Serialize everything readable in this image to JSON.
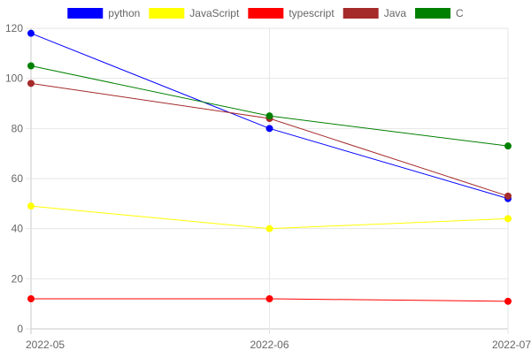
{
  "chart_data": {
    "type": "line",
    "title": "",
    "xlabel": "",
    "ylabel": "",
    "categories": [
      "2022-05",
      "2022-06",
      "2022-07"
    ],
    "ylim": [
      0,
      120
    ],
    "yticks": [
      0,
      20,
      40,
      60,
      80,
      100,
      120
    ],
    "grid": true,
    "legend_position": "top",
    "series": [
      {
        "name": "python",
        "color": "#0000ff",
        "values": [
          118,
          80,
          52
        ]
      },
      {
        "name": "JavaScript",
        "color": "#ffff00",
        "values": [
          49,
          40,
          44
        ]
      },
      {
        "name": "typescript",
        "color": "#ff0000",
        "values": [
          12,
          12,
          11
        ]
      },
      {
        "name": "Java",
        "color": "#a52a2a",
        "values": [
          98,
          84,
          53
        ]
      },
      {
        "name": "C",
        "color": "#008000",
        "values": [
          105,
          85,
          73
        ]
      }
    ]
  }
}
